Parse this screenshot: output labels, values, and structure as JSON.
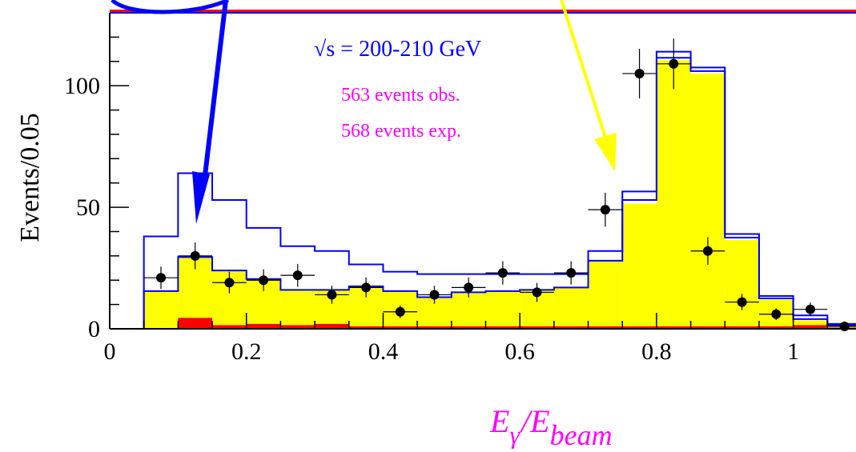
{
  "chart_data": {
    "type": "bar",
    "title": "",
    "xlabel": {
      "main": "E",
      "sub1": "γ",
      "slash": "/",
      "main2": "E",
      "sub2": "beam"
    },
    "ylabel": "Events/0.05",
    "xlim": [
      0,
      1.1
    ],
    "ylim": [
      0,
      130
    ],
    "x_ticks": [
      "0",
      "0.2",
      "0.4",
      "0.6",
      "0.8",
      "1"
    ],
    "x_tick_values": [
      0,
      0.2,
      0.4,
      0.6,
      0.8,
      1.0
    ],
    "y_ticks": [
      "0",
      "50",
      "100"
    ],
    "y_tick_values": [
      0,
      50,
      100
    ],
    "bin_edges": [
      0,
      0.05,
      0.1,
      0.15,
      0.2,
      0.25,
      0.3,
      0.35,
      0.4,
      0.45,
      0.5,
      0.55,
      0.6,
      0.65,
      0.7,
      0.75,
      0.8,
      0.85,
      0.9,
      0.95,
      1.0,
      1.05,
      1.1
    ],
    "series": [
      {
        "kind": "hist-fill",
        "color": "#ffff00",
        "values": [
          0,
          15.5,
          29.5,
          24,
          20.5,
          16,
          16,
          17.5,
          15.5,
          13,
          15,
          15.5,
          16,
          17,
          28,
          51.5,
          110.5,
          105,
          36.5,
          12,
          3.5,
          1,
          0
        ]
      },
      {
        "kind": "hist-fill",
        "color": "#ff0000",
        "values": [
          0,
          0,
          4.5,
          1.5,
          2,
          1.5,
          2,
          1,
          1,
          1,
          1,
          1,
          1,
          1,
          1,
          1,
          1,
          1,
          1,
          1,
          1.5,
          0.5,
          0
        ]
      },
      {
        "kind": "hist-line",
        "color": "#0000ff",
        "values": [
          0,
          38,
          64,
          53,
          41.5,
          34,
          32,
          26.5,
          23.5,
          22.5,
          22.5,
          22.5,
          22.5,
          22.5,
          32,
          56.5,
          114,
          107.5,
          39,
          13.5,
          5.5,
          2,
          0
        ]
      },
      {
        "kind": "hist-line",
        "color": "#0000ff",
        "values": [
          0,
          15.5,
          29.5,
          24,
          20.5,
          16,
          16,
          17.5,
          15.5,
          13,
          15,
          15.5,
          16,
          17,
          28,
          53,
          111.5,
          106,
          37.5,
          12.5,
          4,
          1.5,
          0
        ]
      }
    ],
    "data_points": {
      "x": [
        0.075,
        0.125,
        0.175,
        0.225,
        0.275,
        0.325,
        0.375,
        0.425,
        0.475,
        0.525,
        0.575,
        0.625,
        0.675,
        0.725,
        0.775,
        0.825,
        0.875,
        0.925,
        0.975,
        1.025,
        1.075
      ],
      "y": [
        21,
        30,
        19,
        20,
        22,
        14,
        17,
        7,
        14,
        17,
        23,
        15,
        23,
        49,
        105,
        109,
        32,
        11,
        6,
        8,
        1
      ],
      "err": [
        4.6,
        5.5,
        4.4,
        4.5,
        4.7,
        3.7,
        4.1,
        2.6,
        3.7,
        4.1,
        4.8,
        3.9,
        4.8,
        7,
        10.2,
        10.4,
        5.7,
        3.3,
        2.4,
        2.8,
        1
      ]
    },
    "annotations": {
      "sqrt_symbol": "√",
      "energy_text": "s = 200-210 GeV",
      "observed_text": "563 events obs.",
      "expected_text": "568 events exp."
    },
    "colors": {
      "sm_fill": "#ffff00",
      "background_fill": "#ff0000",
      "model_line": "#0000ff",
      "label_magenta": "#ff00ff",
      "arrow_blue": "#0000ff",
      "arrow_yellow": "#ffff00"
    }
  }
}
